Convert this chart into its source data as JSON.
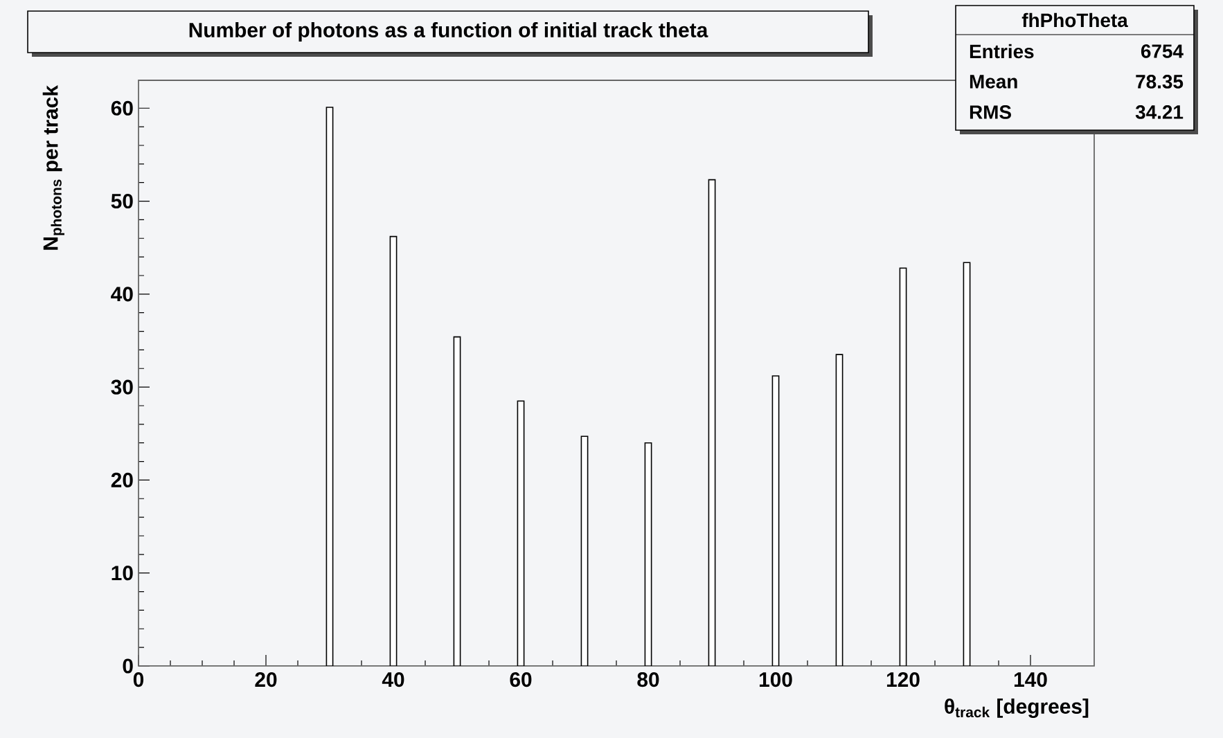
{
  "chart_data": {
    "type": "bar",
    "title": "Number of photons as a function of initial track theta",
    "xlabel": "θ$_{track}$ [degrees]",
    "ylabel": "N$_{photons}$ per track",
    "x": [
      30,
      40,
      50,
      60,
      70,
      80,
      90,
      100,
      110,
      120,
      130
    ],
    "values": [
      60.1,
      46.2,
      35.4,
      28.5,
      24.7,
      24.0,
      52.3,
      31.2,
      33.5,
      42.8,
      43.4
    ],
    "color": "#ffffff",
    "xlim": [
      0,
      150
    ],
    "xticks": [
      0,
      20,
      40,
      60,
      80,
      100,
      120,
      140
    ],
    "ylim": [
      0,
      63
    ],
    "yticks": [
      0,
      10,
      20,
      30,
      40,
      50,
      60
    ],
    "grid": false,
    "annotations": [
      "fhPhoTheta",
      "Entries",
      "6754",
      "Mean",
      "78.35",
      "RMS",
      "34.21"
    ]
  }
}
